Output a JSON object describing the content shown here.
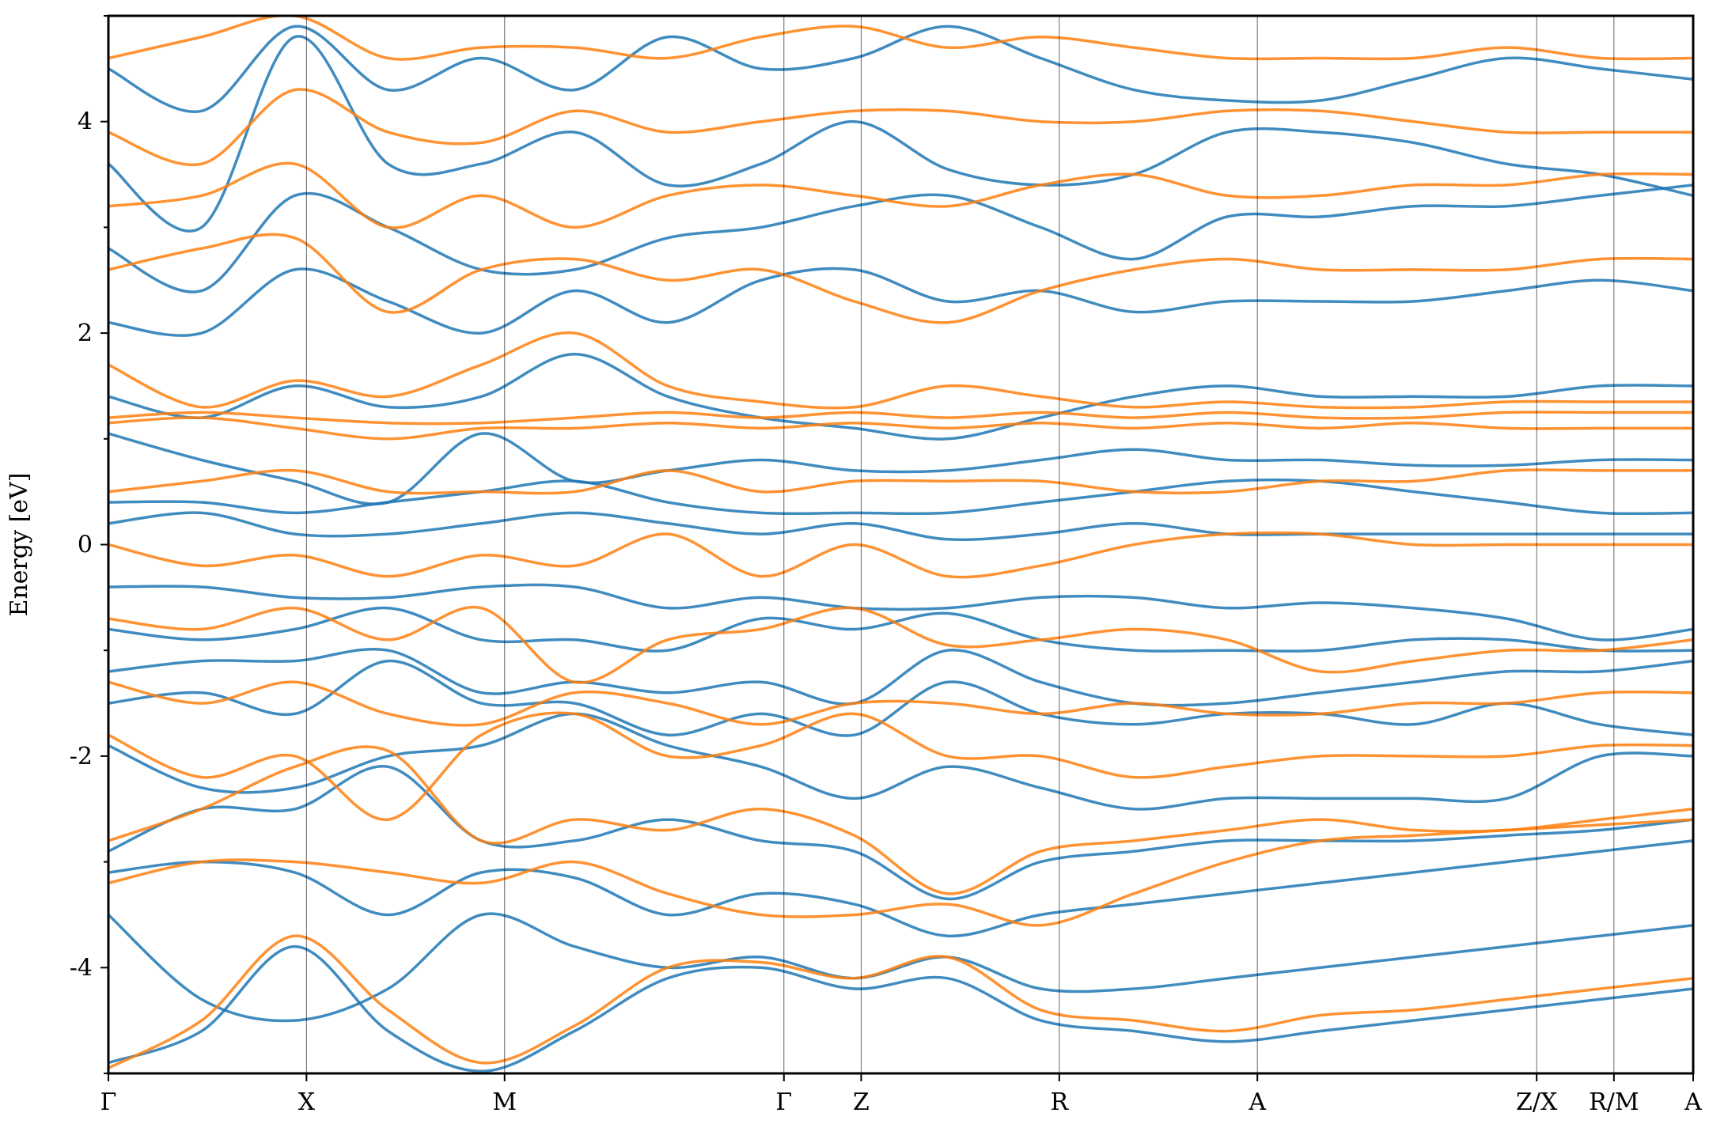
{
  "chart_data": {
    "type": "line",
    "title": "",
    "xlabel": "",
    "ylabel": "Energy [eV]",
    "ylim": [
      -5,
      5
    ],
    "yticks": [
      -4,
      -2,
      0,
      2,
      4
    ],
    "yminor_step": 1,
    "grid": false,
    "legend": "none",
    "kpath": [
      {
        "label": "Γ",
        "x": 0.0
      },
      {
        "label": "X",
        "x": 1.0
      },
      {
        "label": "M",
        "x": 2.0
      },
      {
        "label": "Γ",
        "x": 3.41
      },
      {
        "label": "Z",
        "x": 3.8
      },
      {
        "label": "R",
        "x": 4.8
      },
      {
        "label": "A",
        "x": 5.8
      },
      {
        "label": "Z/X",
        "x": 7.21
      },
      {
        "label": "R/M",
        "x": 7.6
      },
      {
        "label": "A",
        "x": 8.0
      }
    ],
    "xlim": [
      0,
      8.0
    ],
    "series": [
      {
        "color": "#1f77b4",
        "bands": [
          [
            -4.9,
            -4.6,
            -3.8,
            -4.6,
            -4.98,
            -4.6,
            -4.1,
            -4.0,
            -4.2,
            -4.1,
            -4.5,
            -4.6,
            -4.7,
            -4.6,
            -4.5,
            -4.4,
            -4.3,
            -4.2
          ],
          [
            -3.5,
            -4.3,
            -4.5,
            -4.2,
            -3.5,
            -3.8,
            -4.0,
            -3.9,
            -4.1,
            -3.9,
            -4.2,
            -4.2,
            -4.1,
            -4.0,
            -3.9,
            -3.8,
            -3.7,
            -3.6
          ],
          [
            -3.1,
            -3.0,
            -3.1,
            -3.5,
            -3.1,
            -3.15,
            -3.5,
            -3.3,
            -3.4,
            -3.7,
            -3.5,
            -3.4,
            -3.3,
            -3.2,
            -3.1,
            -3.0,
            -2.9,
            -2.8
          ],
          [
            -2.9,
            -2.5,
            -2.5,
            -2.1,
            -2.8,
            -2.8,
            -2.6,
            -2.8,
            -2.9,
            -3.35,
            -3.0,
            -2.9,
            -2.8,
            -2.8,
            -2.8,
            -2.75,
            -2.7,
            -2.6
          ],
          [
            -1.9,
            -2.3,
            -2.3,
            -2.0,
            -1.9,
            -1.6,
            -1.9,
            -2.1,
            -2.4,
            -2.1,
            -2.3,
            -2.5,
            -2.4,
            -2.4,
            -2.4,
            -2.4,
            -2.0,
            -2.0
          ],
          [
            -1.5,
            -1.4,
            -1.6,
            -1.1,
            -1.5,
            -1.5,
            -1.8,
            -1.6,
            -1.8,
            -1.3,
            -1.6,
            -1.7,
            -1.6,
            -1.6,
            -1.7,
            -1.5,
            -1.7,
            -1.8
          ],
          [
            -1.2,
            -1.1,
            -1.1,
            -1.0,
            -1.4,
            -1.3,
            -1.4,
            -1.3,
            -1.5,
            -1.0,
            -1.3,
            -1.5,
            -1.5,
            -1.4,
            -1.3,
            -1.2,
            -1.2,
            -1.1
          ],
          [
            -0.8,
            -0.9,
            -0.8,
            -0.6,
            -0.9,
            -0.9,
            -1.0,
            -0.7,
            -0.8,
            -0.65,
            -0.9,
            -1.0,
            -1.0,
            -1.0,
            -0.9,
            -0.9,
            -1.0,
            -1.0
          ],
          [
            -0.4,
            -0.4,
            -0.5,
            -0.5,
            -0.4,
            -0.4,
            -0.6,
            -0.5,
            -0.6,
            -0.6,
            -0.5,
            -0.5,
            -0.6,
            -0.55,
            -0.6,
            -0.7,
            -0.9,
            -0.8
          ],
          [
            0.2,
            0.3,
            0.1,
            0.1,
            0.2,
            0.3,
            0.2,
            0.1,
            0.2,
            0.05,
            0.1,
            0.2,
            0.1,
            0.1,
            0.1,
            0.1,
            0.1,
            0.1
          ],
          [
            0.4,
            0.4,
            0.3,
            0.4,
            0.5,
            0.6,
            0.4,
            0.3,
            0.3,
            0.3,
            0.4,
            0.5,
            0.6,
            0.6,
            0.5,
            0.4,
            0.3,
            0.3
          ],
          [
            1.05,
            0.8,
            0.6,
            0.4,
            1.05,
            0.6,
            0.7,
            0.8,
            0.7,
            0.7,
            0.8,
            0.9,
            0.8,
            0.8,
            0.75,
            0.75,
            0.8,
            0.8
          ],
          [
            1.4,
            1.2,
            1.5,
            1.3,
            1.4,
            1.8,
            1.4,
            1.2,
            1.1,
            1.0,
            1.2,
            1.4,
            1.5,
            1.4,
            1.4,
            1.4,
            1.5,
            1.5
          ],
          [
            2.1,
            2.0,
            2.6,
            2.3,
            2.0,
            2.4,
            2.1,
            2.5,
            2.6,
            2.3,
            2.4,
            2.2,
            2.3,
            2.3,
            2.3,
            2.4,
            2.5,
            2.4
          ],
          [
            2.8,
            2.4,
            3.3,
            3.0,
            2.6,
            2.6,
            2.9,
            3.0,
            3.2,
            3.3,
            3.0,
            2.7,
            3.1,
            3.1,
            3.2,
            3.2,
            3.3,
            3.4
          ],
          [
            3.6,
            3.0,
            4.8,
            3.6,
            3.6,
            3.9,
            3.4,
            3.6,
            4.0,
            3.55,
            3.4,
            3.5,
            3.9,
            3.9,
            3.8,
            3.6,
            3.5,
            3.3
          ],
          [
            4.5,
            4.1,
            4.9,
            4.3,
            4.6,
            4.3,
            4.8,
            4.5,
            4.6,
            4.9,
            4.6,
            4.3,
            4.2,
            4.2,
            4.4,
            4.6,
            4.5,
            4.4
          ]
        ]
      },
      {
        "color": "#ff7f0e",
        "bands": [
          [
            -4.95,
            -4.5,
            -3.7,
            -4.4,
            -4.9,
            -4.55,
            -4.0,
            -3.95,
            -4.1,
            -3.9,
            -4.4,
            -4.5,
            -4.6,
            -4.45,
            -4.4,
            -4.3,
            -4.2,
            -4.1
          ],
          [
            -3.2,
            -3.0,
            -3.0,
            -3.1,
            -3.2,
            -3.0,
            -3.3,
            -3.5,
            -3.5,
            -3.4,
            -3.6,
            -3.3,
            -3.0,
            -2.8,
            -2.75,
            -2.7,
            -2.65,
            -2.6
          ],
          [
            -2.8,
            -2.5,
            -2.1,
            -1.95,
            -2.8,
            -2.6,
            -2.7,
            -2.5,
            -2.75,
            -3.3,
            -2.9,
            -2.8,
            -2.7,
            -2.6,
            -2.7,
            -2.7,
            -2.6,
            -2.5
          ],
          [
            -1.8,
            -2.2,
            -2.0,
            -2.6,
            -1.8,
            -1.6,
            -2.0,
            -1.9,
            -1.6,
            -2.0,
            -2.0,
            -2.2,
            -2.1,
            -2.0,
            -2.0,
            -2.0,
            -1.9,
            -1.9
          ],
          [
            -1.3,
            -1.5,
            -1.3,
            -1.6,
            -1.7,
            -1.4,
            -1.5,
            -1.7,
            -1.5,
            -1.5,
            -1.6,
            -1.5,
            -1.6,
            -1.6,
            -1.5,
            -1.5,
            -1.4,
            -1.4
          ],
          [
            -0.7,
            -0.8,
            -0.6,
            -0.9,
            -0.6,
            -1.3,
            -0.9,
            -0.8,
            -0.6,
            -0.95,
            -0.9,
            -0.8,
            -0.9,
            -1.2,
            -1.1,
            -1.0,
            -1.0,
            -0.9
          ],
          [
            0.0,
            -0.2,
            -0.1,
            -0.3,
            -0.1,
            -0.2,
            0.1,
            -0.3,
            0.0,
            -0.3,
            -0.2,
            0.0,
            0.1,
            0.1,
            0.0,
            0.0,
            0.0,
            0.0
          ],
          [
            0.5,
            0.6,
            0.7,
            0.5,
            0.5,
            0.5,
            0.7,
            0.5,
            0.6,
            0.6,
            0.6,
            0.5,
            0.5,
            0.6,
            0.6,
            0.7,
            0.7,
            0.7
          ],
          [
            1.15,
            1.2,
            1.1,
            1.0,
            1.1,
            1.1,
            1.15,
            1.1,
            1.15,
            1.1,
            1.15,
            1.1,
            1.15,
            1.1,
            1.15,
            1.1,
            1.1,
            1.1
          ],
          [
            1.2,
            1.25,
            1.2,
            1.15,
            1.15,
            1.2,
            1.25,
            1.2,
            1.25,
            1.2,
            1.25,
            1.2,
            1.25,
            1.2,
            1.2,
            1.25,
            1.25,
            1.25
          ],
          [
            1.7,
            1.3,
            1.55,
            1.4,
            1.7,
            2.0,
            1.5,
            1.35,
            1.3,
            1.5,
            1.4,
            1.3,
            1.35,
            1.3,
            1.3,
            1.35,
            1.35,
            1.35
          ],
          [
            2.6,
            2.8,
            2.9,
            2.2,
            2.6,
            2.7,
            2.5,
            2.6,
            2.3,
            2.1,
            2.4,
            2.6,
            2.7,
            2.6,
            2.6,
            2.6,
            2.7,
            2.7
          ],
          [
            3.2,
            3.3,
            3.6,
            3.0,
            3.3,
            3.0,
            3.3,
            3.4,
            3.3,
            3.2,
            3.4,
            3.5,
            3.3,
            3.3,
            3.4,
            3.4,
            3.5,
            3.5
          ],
          [
            3.9,
            3.6,
            4.3,
            3.9,
            3.8,
            4.1,
            3.9,
            4.0,
            4.1,
            4.1,
            4.0,
            4.0,
            4.1,
            4.1,
            4.0,
            3.9,
            3.9,
            3.9
          ],
          [
            4.6,
            4.8,
            5.0,
            4.6,
            4.7,
            4.7,
            4.6,
            4.8,
            4.9,
            4.7,
            4.8,
            4.7,
            4.6,
            4.6,
            4.6,
            4.7,
            4.6,
            4.6
          ]
        ]
      }
    ]
  }
}
